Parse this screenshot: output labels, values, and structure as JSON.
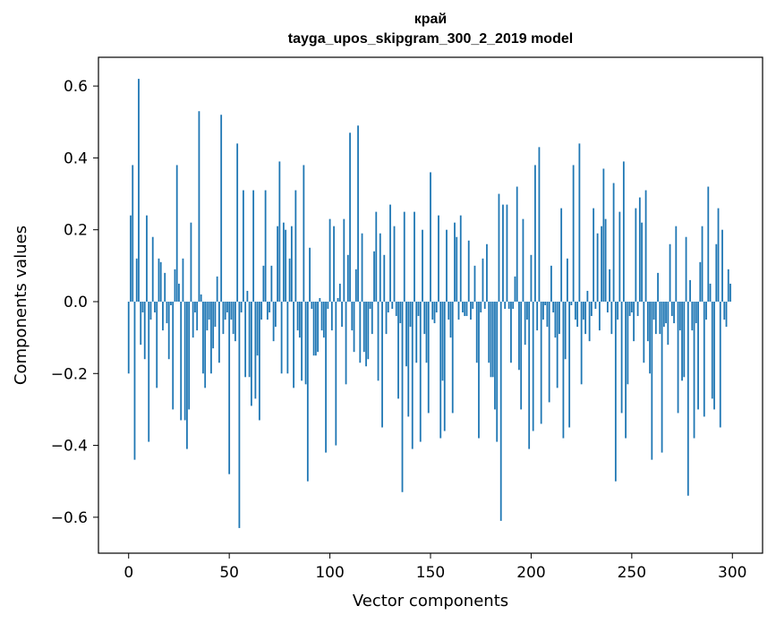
{
  "chart_data": {
    "type": "bar",
    "title_line1": "край",
    "title_line2": "tayga_upos_skipgram_300_2_2019 model",
    "xlabel": "Vector components",
    "ylabel": "Components values",
    "xlim": [
      -15,
      315
    ],
    "ylim": [
      -0.7,
      0.68
    ],
    "x_ticks": [
      0,
      50,
      100,
      150,
      200,
      250,
      300
    ],
    "y_ticks": [
      -0.6,
      -0.4,
      -0.2,
      0.0,
      0.2,
      0.4,
      0.6
    ],
    "y_tick_labels": [
      "−0.6",
      "−0.4",
      "−0.2",
      "0.0",
      "0.2",
      "0.4",
      "0.6"
    ],
    "bar_color": "#1f77b4",
    "values": [
      -0.2,
      0.24,
      0.38,
      -0.44,
      0.12,
      0.62,
      -0.12,
      -0.03,
      -0.16,
      0.24,
      -0.39,
      -0.05,
      0.18,
      -0.03,
      -0.24,
      0.12,
      0.11,
      -0.08,
      0.08,
      -0.06,
      -0.16,
      -0.01,
      -0.3,
      0.09,
      0.38,
      0.05,
      -0.33,
      0.12,
      -0.33,
      -0.41,
      -0.3,
      0.22,
      -0.1,
      -0.03,
      -0.08,
      0.53,
      0.02,
      -0.2,
      -0.24,
      -0.08,
      -0.05,
      -0.2,
      -0.13,
      -0.07,
      0.07,
      -0.17,
      0.52,
      -0.09,
      -0.05,
      -0.03,
      -0.48,
      -0.05,
      -0.09,
      -0.11,
      0.44,
      -0.63,
      -0.03,
      0.31,
      -0.21,
      0.03,
      -0.21,
      -0.29,
      0.31,
      -0.27,
      -0.15,
      -0.33,
      -0.05,
      0.1,
      0.31,
      -0.05,
      -0.03,
      0.1,
      -0.11,
      -0.07,
      0.21,
      0.39,
      -0.2,
      0.22,
      0.2,
      -0.2,
      0.12,
      0.21,
      -0.24,
      0.31,
      -0.08,
      -0.1,
      -0.22,
      0.38,
      -0.23,
      -0.5,
      0.15,
      -0.02,
      -0.15,
      -0.15,
      -0.14,
      0.01,
      -0.08,
      -0.1,
      -0.42,
      -0.02,
      0.23,
      -0.08,
      0.21,
      -0.4,
      0.01,
      0.05,
      -0.07,
      0.23,
      -0.23,
      0.13,
      0.47,
      -0.08,
      -0.14,
      0.09,
      0.49,
      -0.17,
      0.19,
      -0.14,
      -0.18,
      -0.16,
      -0.02,
      -0.09,
      0.14,
      0.25,
      -0.22,
      0.19,
      -0.35,
      0.13,
      -0.09,
      -0.03,
      0.27,
      -0.02,
      0.21,
      -0.04,
      -0.27,
      -0.06,
      -0.53,
      0.25,
      -0.18,
      -0.32,
      -0.07,
      -0.41,
      0.25,
      -0.17,
      -0.04,
      -0.39,
      0.2,
      -0.09,
      -0.17,
      -0.31,
      0.36,
      -0.05,
      -0.06,
      -0.03,
      0.24,
      -0.38,
      -0.22,
      -0.36,
      0.2,
      -0.05,
      -0.1,
      -0.31,
      0.22,
      0.18,
      -0.05,
      0.24,
      -0.03,
      -0.04,
      -0.04,
      0.17,
      -0.05,
      -0.02,
      0.1,
      -0.17,
      -0.38,
      -0.03,
      0.12,
      -0.02,
      0.16,
      -0.17,
      -0.21,
      -0.21,
      -0.3,
      -0.39,
      0.3,
      -0.61,
      0.27,
      -0.02,
      0.27,
      -0.02,
      -0.17,
      -0.02,
      0.07,
      0.32,
      -0.19,
      -0.3,
      0.23,
      -0.12,
      -0.05,
      -0.41,
      0.13,
      -0.36,
      0.38,
      -0.08,
      0.43,
      -0.34,
      -0.05,
      -0.01,
      -0.07,
      -0.28,
      0.1,
      -0.03,
      -0.1,
      -0.24,
      -0.09,
      0.26,
      -0.38,
      -0.16,
      0.12,
      -0.35,
      -0.01,
      0.38,
      -0.05,
      -0.07,
      0.44,
      -0.23,
      -0.05,
      -0.09,
      0.03,
      -0.11,
      -0.04,
      0.26,
      -0.02,
      0.19,
      -0.08,
      0.21,
      0.37,
      0.23,
      -0.03,
      0.09,
      -0.09,
      0.33,
      -0.5,
      -0.05,
      0.25,
      -0.31,
      0.39,
      -0.38,
      -0.23,
      -0.04,
      -0.03,
      -0.11,
      0.26,
      -0.04,
      0.29,
      0.22,
      -0.17,
      0.31,
      -0.11,
      -0.2,
      -0.44,
      -0.05,
      -0.09,
      0.08,
      -0.09,
      -0.42,
      -0.07,
      -0.06,
      -0.12,
      0.16,
      -0.04,
      -0.06,
      0.21,
      -0.31,
      -0.08,
      -0.22,
      -0.21,
      0.18,
      -0.54,
      0.06,
      -0.08,
      -0.38,
      -0.06,
      -0.3,
      0.11,
      0.21,
      -0.32,
      -0.05,
      0.32,
      0.05,
      -0.27,
      -0.3,
      0.16,
      0.26,
      -0.35,
      0.2,
      -0.05,
      -0.07,
      0.09,
      0.05
    ]
  }
}
